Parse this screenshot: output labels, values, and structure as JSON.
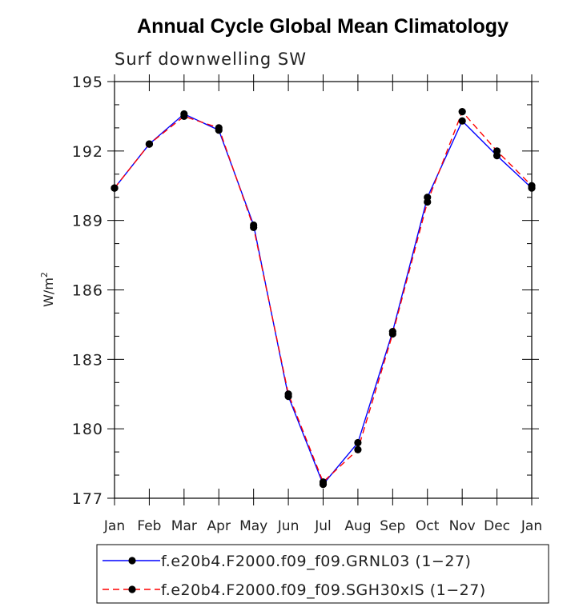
{
  "chart_data": {
    "type": "line",
    "title": "Annual Cycle Global Mean Climatology",
    "subtitle": "Surf downwelling SW",
    "ylabel_base": "W/m",
    "ylabel_sup": "2",
    "categories": [
      "Jan",
      "Feb",
      "Mar",
      "Apr",
      "May",
      "Jun",
      "Jul",
      "Aug",
      "Sep",
      "Oct",
      "Nov",
      "Dec",
      "Jan"
    ],
    "ylim": [
      177,
      195
    ],
    "yticks": [
      177,
      180,
      183,
      186,
      189,
      192,
      195
    ],
    "grid": false,
    "legend_position": "bottom",
    "series": [
      {
        "name": "f.e20b4.F2000.f09_f09.GRNL03 (1−27)",
        "color": "#0000ff",
        "dash": "solid",
        "values": [
          190.4,
          192.3,
          193.6,
          192.9,
          188.8,
          181.4,
          177.6,
          179.4,
          184.2,
          190.0,
          193.3,
          191.8,
          190.4
        ]
      },
      {
        "name": "f.e20b4.F2000.f09_f09.SGH30xIS (1−27)",
        "color": "#ff0000",
        "dash": "dashed",
        "values": [
          190.4,
          192.3,
          193.5,
          193.0,
          188.7,
          181.5,
          177.7,
          179.1,
          184.1,
          189.8,
          193.7,
          192.0,
          190.5
        ]
      }
    ]
  }
}
